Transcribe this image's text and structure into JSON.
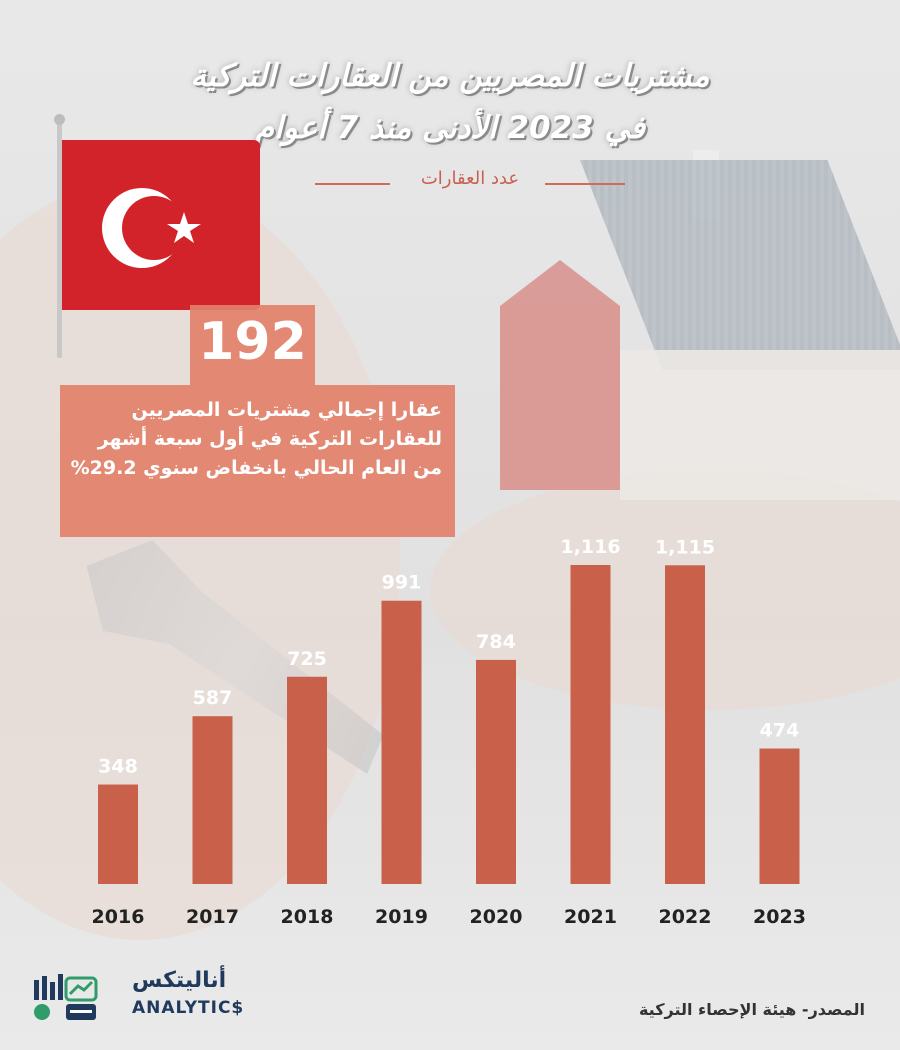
{
  "title_line1": "مشتريات المصريين من العقارات التركية",
  "title_line2": "في 2023 الأدنى منذ 7 أعوام",
  "subtitle": "عدد العقارات",
  "callout": {
    "number": "192",
    "text": "عقارا إجمالي مشتريات المصريين للعقارات التركية في أول سبعة أشهر من العام الحالي بانخفاض سنوي 29.2%"
  },
  "source": "المصدر- هيئة الإحصاء التركية",
  "logo": {
    "arabic": "أناليتكس",
    "english": "ANALYTIC$"
  },
  "colors": {
    "bar": "#c8604a",
    "flag_red": "#d2232a",
    "callout": "#e2806a"
  },
  "chart_data": {
    "type": "bar",
    "categories": [
      "2016",
      "2017",
      "2018",
      "2019",
      "2020",
      "2021",
      "2022",
      "2023"
    ],
    "values": [
      348,
      587,
      725,
      991,
      784,
      1116,
      1115,
      474
    ],
    "value_labels": [
      "348",
      "587",
      "725",
      "991",
      "784",
      "1,116",
      "1,115",
      "474"
    ],
    "title": "مشتريات المصريين من العقارات التركية في 2023 الأدنى منذ 7 أعوام",
    "ylabel": "عدد العقارات",
    "xlabel": "",
    "ylim": [
      0,
      1200
    ],
    "grid": false,
    "legend": "none"
  }
}
